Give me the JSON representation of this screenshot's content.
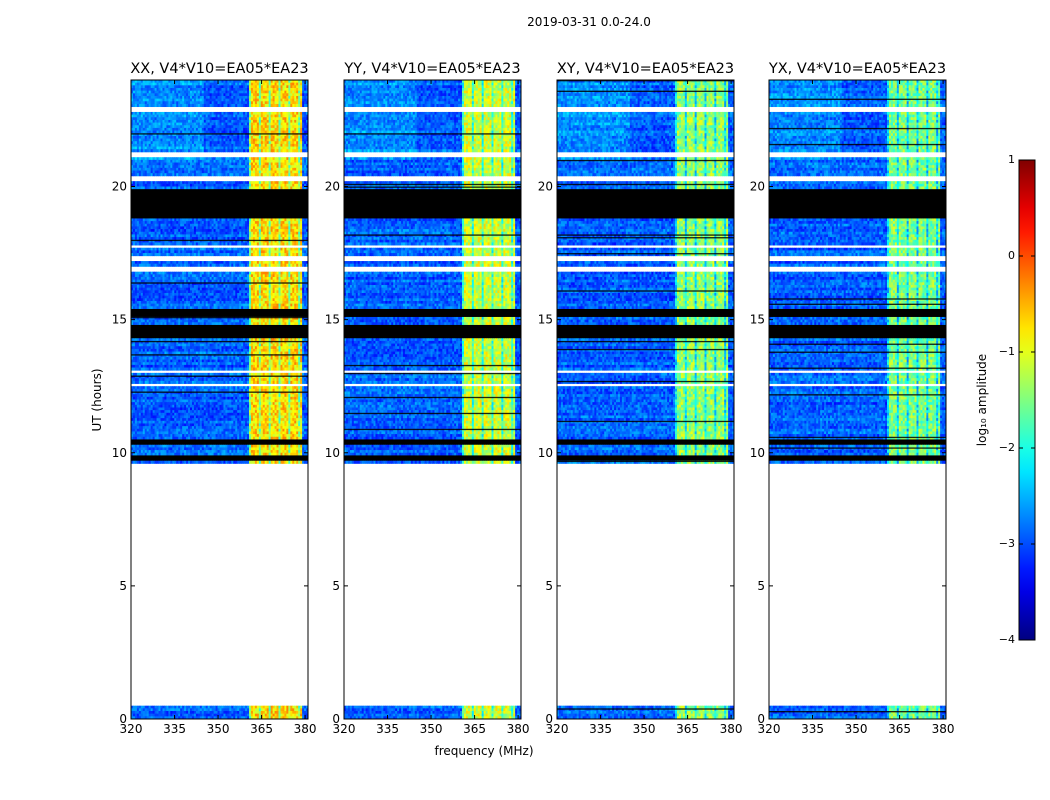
{
  "chart_data": {
    "type": "heatmap",
    "suptitle": "2019-03-31 0.0-24.0",
    "xlabel": "frequency (MHz)",
    "ylabel": "UT (hours)",
    "xlim": [
      320,
      381
    ],
    "ylim": [
      0,
      24
    ],
    "xticks": [
      320,
      335,
      350,
      365,
      380
    ],
    "yticks": [
      0,
      5,
      10,
      15,
      20
    ],
    "panels": [
      {
        "title": "XX, V4*V10=EA05*EA23",
        "polarization": "XX",
        "base_level": -2.9,
        "band_level": -0.7
      },
      {
        "title": "YY, V4*V10=EA05*EA23",
        "polarization": "YY",
        "base_level": -2.9,
        "band_level": -1.1
      },
      {
        "title": "XY, V4*V10=EA05*EA23",
        "polarization": "XY",
        "base_level": -2.9,
        "band_level": -1.4
      },
      {
        "title": "YX, V4*V10=EA05*EA23",
        "polarization": "YX",
        "base_level": -2.9,
        "band_level": -1.5
      }
    ],
    "rfi_band_mhz": [
      361,
      379
    ],
    "data_intervals_ut": [
      [
        0.0,
        0.5
      ],
      [
        9.6,
        24.0
      ]
    ],
    "flagged_intervals_ut": [
      [
        18.8,
        19.9
      ],
      [
        15.1,
        15.35
      ],
      [
        14.3,
        14.75
      ],
      [
        10.35,
        10.5
      ],
      [
        9.75,
        9.9
      ]
    ],
    "blank_rows_ut": [
      17.3,
      16.9,
      17.75,
      12.55,
      13.05,
      22.9,
      21.2,
      20.3
    ],
    "colorbar": {
      "label": "log₁₀ amplitude",
      "range": [
        -4,
        1
      ],
      "ticks": [
        -4,
        -3,
        -2,
        -1,
        0,
        1
      ],
      "colormap": "jet"
    }
  }
}
